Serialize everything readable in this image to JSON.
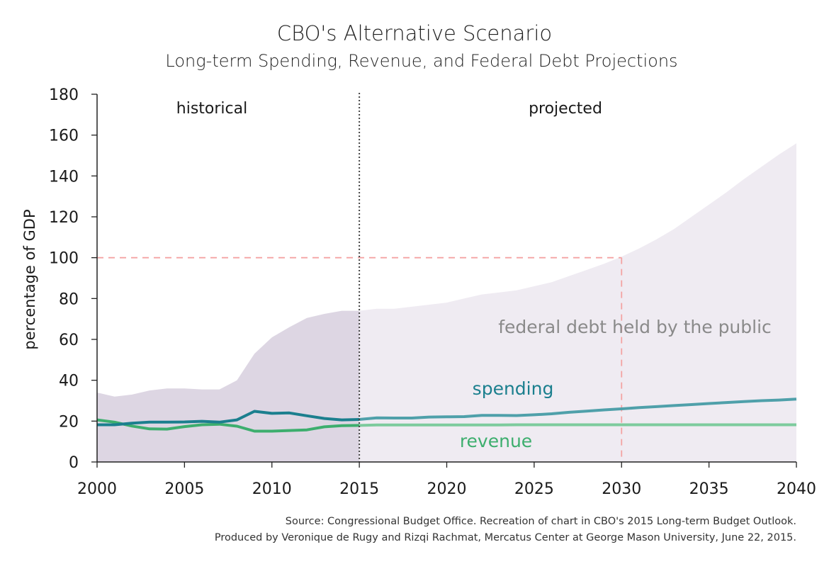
{
  "chart_data": {
    "type": "line",
    "title": "CBO's Alternative Scenario",
    "subtitle": "Long-term Spending, Revenue, and Federal Debt Projections",
    "xlabel": "",
    "ylabel": "percentage of GDP",
    "xlim": [
      2000,
      2040
    ],
    "ylim": [
      0,
      180
    ],
    "xticks": [
      2000,
      2005,
      2010,
      2015,
      2020,
      2025,
      2030,
      2035,
      2040
    ],
    "yticks": [
      0,
      20,
      40,
      60,
      80,
      100,
      120,
      140,
      160,
      180
    ],
    "grid": false,
    "divider_year": 2015,
    "region_labels": {
      "historical": "historical",
      "projected": "projected"
    },
    "reference": {
      "value": 100,
      "year": 2030
    },
    "series": [
      {
        "name": "federal debt held by the public",
        "kind": "area",
        "color_hist": "#ddd6e3",
        "color_proj": "#efebf2",
        "label_color": "#8a8a8a",
        "x": [
          2000,
          2001,
          2002,
          2003,
          2004,
          2005,
          2006,
          2007,
          2008,
          2009,
          2010,
          2011,
          2012,
          2013,
          2014,
          2015,
          2016,
          2017,
          2018,
          2019,
          2020,
          2021,
          2022,
          2023,
          2024,
          2025,
          2026,
          2027,
          2028,
          2029,
          2030,
          2031,
          2032,
          2033,
          2034,
          2035,
          2036,
          2037,
          2038,
          2039,
          2040
        ],
        "values": [
          34,
          32,
          33,
          35,
          36,
          36,
          35.5,
          35.5,
          40,
          53,
          61,
          66,
          70.5,
          72.5,
          74,
          74,
          75,
          75,
          76,
          77,
          78,
          80,
          82,
          83,
          84,
          86,
          88,
          91,
          94,
          97,
          100.5,
          104.5,
          109,
          114,
          120,
          126,
          132,
          138.5,
          144.5,
          150.5,
          156
        ]
      },
      {
        "name": "spending",
        "kind": "line",
        "color": "#1b7f8e",
        "color_proj": "#4fa0aa",
        "x": [
          2000,
          2001,
          2002,
          2003,
          2004,
          2005,
          2006,
          2007,
          2008,
          2009,
          2010,
          2011,
          2012,
          2013,
          2014,
          2015,
          2016,
          2017,
          2018,
          2019,
          2020,
          2021,
          2022,
          2023,
          2024,
          2025,
          2026,
          2027,
          2028,
          2029,
          2030,
          2031,
          2032,
          2033,
          2034,
          2035,
          2036,
          2037,
          2038,
          2039,
          2040
        ],
        "values": [
          18.2,
          18.2,
          19,
          19.5,
          19.5,
          19.6,
          19.9,
          19.5,
          20.6,
          24.8,
          23.8,
          24,
          22.6,
          21.3,
          20.6,
          20.8,
          21.6,
          21.5,
          21.5,
          22,
          22.1,
          22.2,
          22.8,
          22.8,
          22.7,
          23.1,
          23.6,
          24.3,
          24.9,
          25.5,
          26,
          26.6,
          27.1,
          27.6,
          28.1,
          28.6,
          29.1,
          29.6,
          30,
          30.3,
          30.8
        ]
      },
      {
        "name": "revenue",
        "kind": "line",
        "color": "#3dae6e",
        "color_proj": "#7dcb9d",
        "x": [
          2000,
          2001,
          2002,
          2003,
          2004,
          2005,
          2006,
          2007,
          2008,
          2009,
          2010,
          2011,
          2012,
          2013,
          2014,
          2015,
          2016,
          2017,
          2018,
          2019,
          2020,
          2021,
          2022,
          2023,
          2024,
          2025,
          2026,
          2027,
          2028,
          2029,
          2030,
          2031,
          2032,
          2033,
          2034,
          2035,
          2036,
          2037,
          2038,
          2039,
          2040
        ],
        "values": [
          20.6,
          19.5,
          17.6,
          16.2,
          16.1,
          17.3,
          18.2,
          18.5,
          17.5,
          15.1,
          15.1,
          15.4,
          15.7,
          17.2,
          17.8,
          17.9,
          18.1,
          18.1,
          18.1,
          18.1,
          18.1,
          18.1,
          18.1,
          18.1,
          18.2,
          18.2,
          18.2,
          18.2,
          18.2,
          18.2,
          18.2,
          18.2,
          18.2,
          18.2,
          18.2,
          18.2,
          18.2,
          18.2,
          18.2,
          18.2,
          18.2
        ]
      }
    ]
  },
  "source_line1": "Source: Congressional Budget Office. Recreation of chart in CBO's 2015 Long-term Budget Outlook.",
  "source_line2": "Produced by Veronique de Rugy and Rizqi Rachmat, Mercatus Center at George Mason University, June 22, 2015."
}
